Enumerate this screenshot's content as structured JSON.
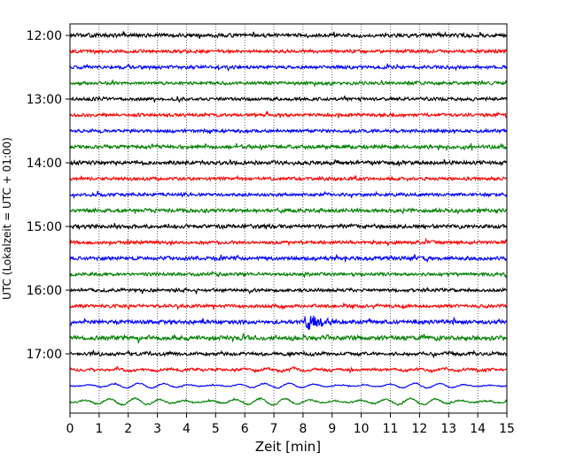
{
  "chart_data": {
    "type": "line",
    "title": "",
    "xlabel": "Zeit  [min]",
    "ylabel": "UTC (Lokalzeit = UTC + 01:00)",
    "xlim": [
      0,
      15
    ],
    "x_ticks": [
      "0",
      "1",
      "2",
      "3",
      "4",
      "5",
      "6",
      "7",
      "8",
      "9",
      "10",
      "11",
      "12",
      "13",
      "14",
      "15"
    ],
    "y_tick_labels": [
      "12:00",
      "13:00",
      "14:00",
      "15:00",
      "16:00",
      "17:00"
    ],
    "grid": "vertical dotted at each minute",
    "line_period_minutes": 15,
    "colors_cycle": [
      "#000000",
      "#ff0000",
      "#0000ff",
      "#008000"
    ],
    "traces": [
      {
        "start": "12:00",
        "color": "#000000",
        "amplitude": 0.35,
        "waves": 0
      },
      {
        "start": "12:15",
        "color": "#ff0000",
        "amplitude": 0.3,
        "waves": 0
      },
      {
        "start": "12:30",
        "color": "#0000ff",
        "amplitude": 0.3,
        "waves": 0
      },
      {
        "start": "12:45",
        "color": "#008000",
        "amplitude": 0.3,
        "waves": 0
      },
      {
        "start": "13:00",
        "color": "#000000",
        "amplitude": 0.3,
        "waves": 0
      },
      {
        "start": "13:15",
        "color": "#ff0000",
        "amplitude": 0.3,
        "waves": 0
      },
      {
        "start": "13:30",
        "color": "#0000ff",
        "amplitude": 0.3,
        "waves": 0
      },
      {
        "start": "13:45",
        "color": "#008000",
        "amplitude": 0.35,
        "waves": 0
      },
      {
        "start": "14:00",
        "color": "#000000",
        "amplitude": 0.35,
        "waves": 0
      },
      {
        "start": "14:15",
        "color": "#ff0000",
        "amplitude": 0.3,
        "waves": 0
      },
      {
        "start": "14:30",
        "color": "#0000ff",
        "amplitude": 0.3,
        "waves": 0
      },
      {
        "start": "14:45",
        "color": "#008000",
        "amplitude": 0.35,
        "waves": 0
      },
      {
        "start": "15:00",
        "color": "#000000",
        "amplitude": 0.35,
        "waves": 0
      },
      {
        "start": "15:15",
        "color": "#ff0000",
        "amplitude": 0.3,
        "waves": 0
      },
      {
        "start": "15:30",
        "color": "#0000ff",
        "amplitude": 0.35,
        "waves": 0
      },
      {
        "start": "15:45",
        "color": "#008000",
        "amplitude": 0.3,
        "waves": 0
      },
      {
        "start": "16:00",
        "color": "#000000",
        "amplitude": 0.3,
        "waves": 0
      },
      {
        "start": "16:15",
        "color": "#ff0000",
        "amplitude": 0.3,
        "waves": 0
      },
      {
        "start": "16:30",
        "color": "#0000ff",
        "amplitude": 0.35,
        "waves": 0,
        "event_minute": 8.2
      },
      {
        "start": "16:45",
        "color": "#008000",
        "amplitude": 0.4,
        "waves": 0.15
      },
      {
        "start": "17:00",
        "color": "#000000",
        "amplitude": 0.3,
        "waves": 0.15
      },
      {
        "start": "17:15",
        "color": "#ff0000",
        "amplitude": 0.25,
        "waves": 0.3
      },
      {
        "start": "17:30",
        "color": "#0000ff",
        "amplitude": 0.1,
        "waves": 0.55
      },
      {
        "start": "17:45",
        "color": "#008000",
        "amplitude": 0.15,
        "waves": 0.75
      }
    ]
  }
}
